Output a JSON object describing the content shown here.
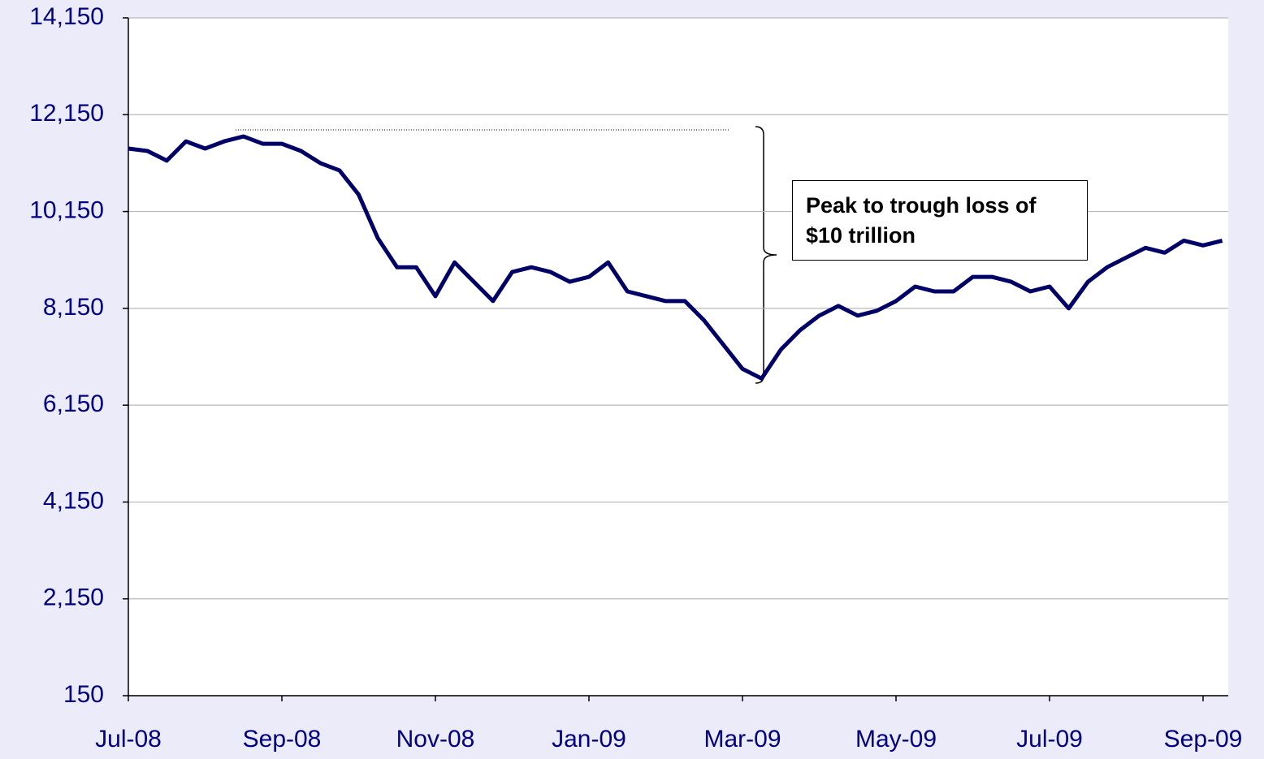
{
  "chart_data": {
    "type": "line",
    "annotation": "Peak to trough loss of $10 trillion",
    "categories": [
      "Jul-08",
      null,
      null,
      null,
      null,
      null,
      null,
      null,
      "Sep-08",
      null,
      null,
      null,
      null,
      null,
      null,
      null,
      "Nov-08",
      null,
      null,
      null,
      null,
      null,
      null,
      null,
      "Jan-09",
      null,
      null,
      null,
      null,
      null,
      null,
      null,
      "Mar-09",
      null,
      null,
      null,
      null,
      null,
      null,
      null,
      "May-09",
      null,
      null,
      null,
      null,
      null,
      null,
      null,
      "Jul-09",
      null,
      null,
      null,
      null,
      null,
      null,
      null,
      "Sep-09",
      null
    ],
    "series": [
      {
        "color": "#000066",
        "values": [
          11450,
          11400,
          11200,
          11600,
          11450,
          11600,
          11700,
          11550,
          11550,
          11400,
          11150,
          11000,
          10500,
          9600,
          9000,
          9000,
          8400,
          9100,
          8700,
          8300,
          8900,
          9000,
          8900,
          8700,
          8800,
          9100,
          8500,
          8400,
          8300,
          8300,
          7900,
          7400,
          6900,
          6700,
          7300,
          7700,
          8000,
          8200,
          8000,
          8100,
          8300,
          8600,
          8500,
          8500,
          8800,
          8800,
          8700,
          8500,
          8600,
          8150,
          8700,
          9000,
          9200,
          9400,
          9300,
          9550,
          9450,
          9550
        ]
      }
    ],
    "ylim": [
      150,
      14150
    ],
    "yticks": [
      {
        "value": 150,
        "label": "150"
      },
      {
        "value": 2150,
        "label": "2,150"
      },
      {
        "value": 4150,
        "label": "4,150"
      },
      {
        "value": 6150,
        "label": "6,150"
      },
      {
        "value": 8150,
        "label": "8,150"
      },
      {
        "value": 10150,
        "label": "10,150"
      },
      {
        "value": 12150,
        "label": "12,150"
      },
      {
        "value": 14150,
        "label": "14,150"
      }
    ],
    "grid": true
  }
}
